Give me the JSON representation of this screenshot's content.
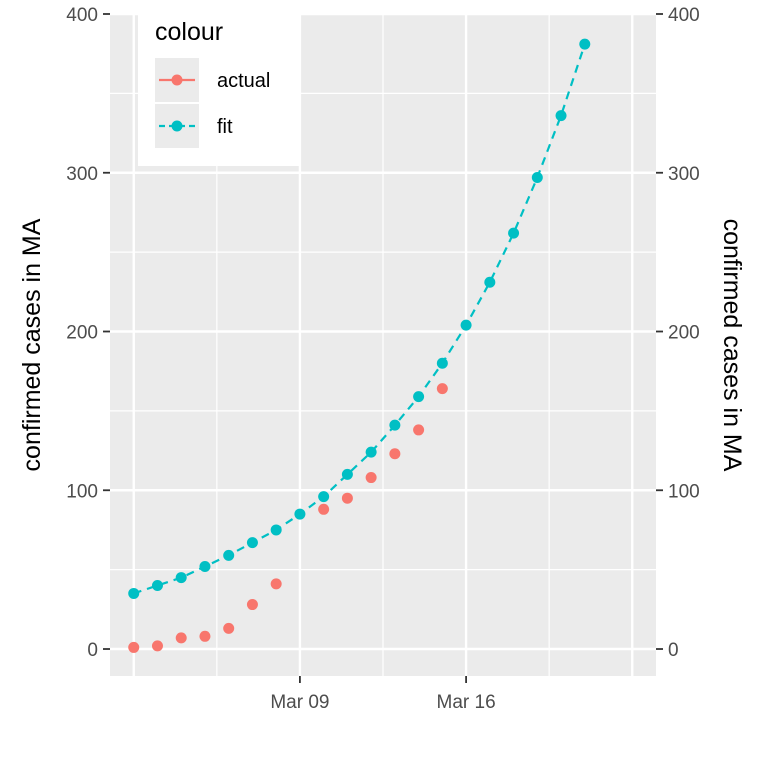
{
  "chart_data": {
    "type": "line",
    "x_axis": {
      "type": "date",
      "ticks": [
        {
          "date": "2020-03-09",
          "label": "Mar 09"
        },
        {
          "date": "2020-03-16",
          "label": "Mar 16"
        }
      ],
      "range": [
        "2020-03-01",
        "2020-03-24"
      ],
      "label": ""
    },
    "y_left": {
      "label": "confirmed cases in MA",
      "ticks": [
        0,
        100,
        200,
        300,
        400
      ],
      "range": [
        -17,
        400
      ]
    },
    "y_right": {
      "label": "confirmed cases in MA",
      "ticks": [
        0,
        100,
        200,
        300,
        400
      ]
    },
    "grid": true,
    "legend": {
      "title": "colour",
      "position": "top-left"
    },
    "series": [
      {
        "name": "actual",
        "color": "#F8766D",
        "line": "none",
        "points": [
          {
            "x": "2020-03-02",
            "y": 1
          },
          {
            "x": "2020-03-03",
            "y": 2
          },
          {
            "x": "2020-03-04",
            "y": 7
          },
          {
            "x": "2020-03-05",
            "y": 8
          },
          {
            "x": "2020-03-06",
            "y": 13
          },
          {
            "x": "2020-03-07",
            "y": 28
          },
          {
            "x": "2020-03-08",
            "y": 41
          },
          {
            "x": "2020-03-10",
            "y": 88
          },
          {
            "x": "2020-03-11",
            "y": 95
          },
          {
            "x": "2020-03-12",
            "y": 108
          },
          {
            "x": "2020-03-13",
            "y": 123
          },
          {
            "x": "2020-03-14",
            "y": 138
          },
          {
            "x": "2020-03-15",
            "y": 164
          }
        ]
      },
      {
        "name": "fit",
        "color": "#00BFC4",
        "line": "dashed",
        "points": [
          {
            "x": "2020-03-02",
            "y": 35
          },
          {
            "x": "2020-03-03",
            "y": 40
          },
          {
            "x": "2020-03-04",
            "y": 45
          },
          {
            "x": "2020-03-05",
            "y": 52
          },
          {
            "x": "2020-03-06",
            "y": 59
          },
          {
            "x": "2020-03-07",
            "y": 67
          },
          {
            "x": "2020-03-08",
            "y": 75
          },
          {
            "x": "2020-03-09",
            "y": 85
          },
          {
            "x": "2020-03-10",
            "y": 96
          },
          {
            "x": "2020-03-11",
            "y": 110
          },
          {
            "x": "2020-03-12",
            "y": 124
          },
          {
            "x": "2020-03-13",
            "y": 141
          },
          {
            "x": "2020-03-14",
            "y": 159
          },
          {
            "x": "2020-03-15",
            "y": 180
          },
          {
            "x": "2020-03-16",
            "y": 204
          },
          {
            "x": "2020-03-17",
            "y": 231
          },
          {
            "x": "2020-03-18",
            "y": 262
          },
          {
            "x": "2020-03-19",
            "y": 297
          },
          {
            "x": "2020-03-20",
            "y": 336
          },
          {
            "x": "2020-03-21",
            "y": 381
          }
        ]
      }
    ]
  }
}
